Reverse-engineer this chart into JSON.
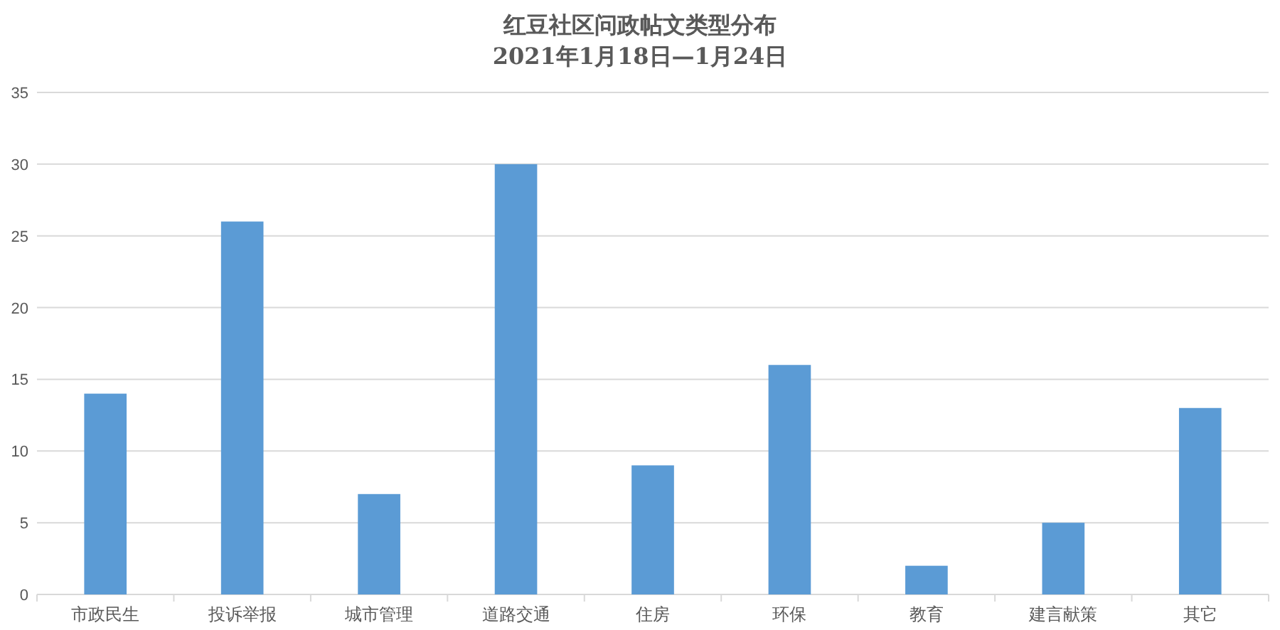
{
  "chart_data": {
    "type": "bar",
    "title": "红豆社区问政帖文类型分布",
    "subtitle": "2021年1月18日—1月24日",
    "categories": [
      "市政民生",
      "投诉举报",
      "城市管理",
      "道路交通",
      "住房",
      "环保",
      "教育",
      "建言献策",
      "其它"
    ],
    "values": [
      14,
      26,
      7,
      30,
      9,
      16,
      2,
      5,
      13
    ],
    "color": "#5b9bd5",
    "ylim": [
      0,
      35
    ],
    "yticks": [
      0,
      5,
      10,
      15,
      20,
      25,
      30,
      35
    ],
    "grid": "y"
  }
}
